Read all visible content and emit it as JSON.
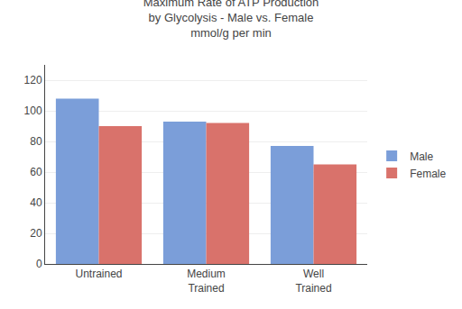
{
  "chart_data": {
    "type": "bar",
    "title": "Maximum Rate of ATP Production\nby Glycolysis - Male vs. Female\nmmol/g per min",
    "categories": [
      "Untrained",
      "Medium\nTrained",
      "Well\nTrained"
    ],
    "series": [
      {
        "name": "Male",
        "color": "#7B9ED9",
        "values": [
          108,
          93,
          77
        ]
      },
      {
        "name": "Female",
        "color": "#D9726B",
        "values": [
          90,
          92,
          65
        ]
      }
    ],
    "ylim": [
      0,
      130
    ],
    "yticks": [
      0,
      20,
      40,
      60,
      80,
      100,
      120
    ],
    "grid": true,
    "legend": "right"
  }
}
